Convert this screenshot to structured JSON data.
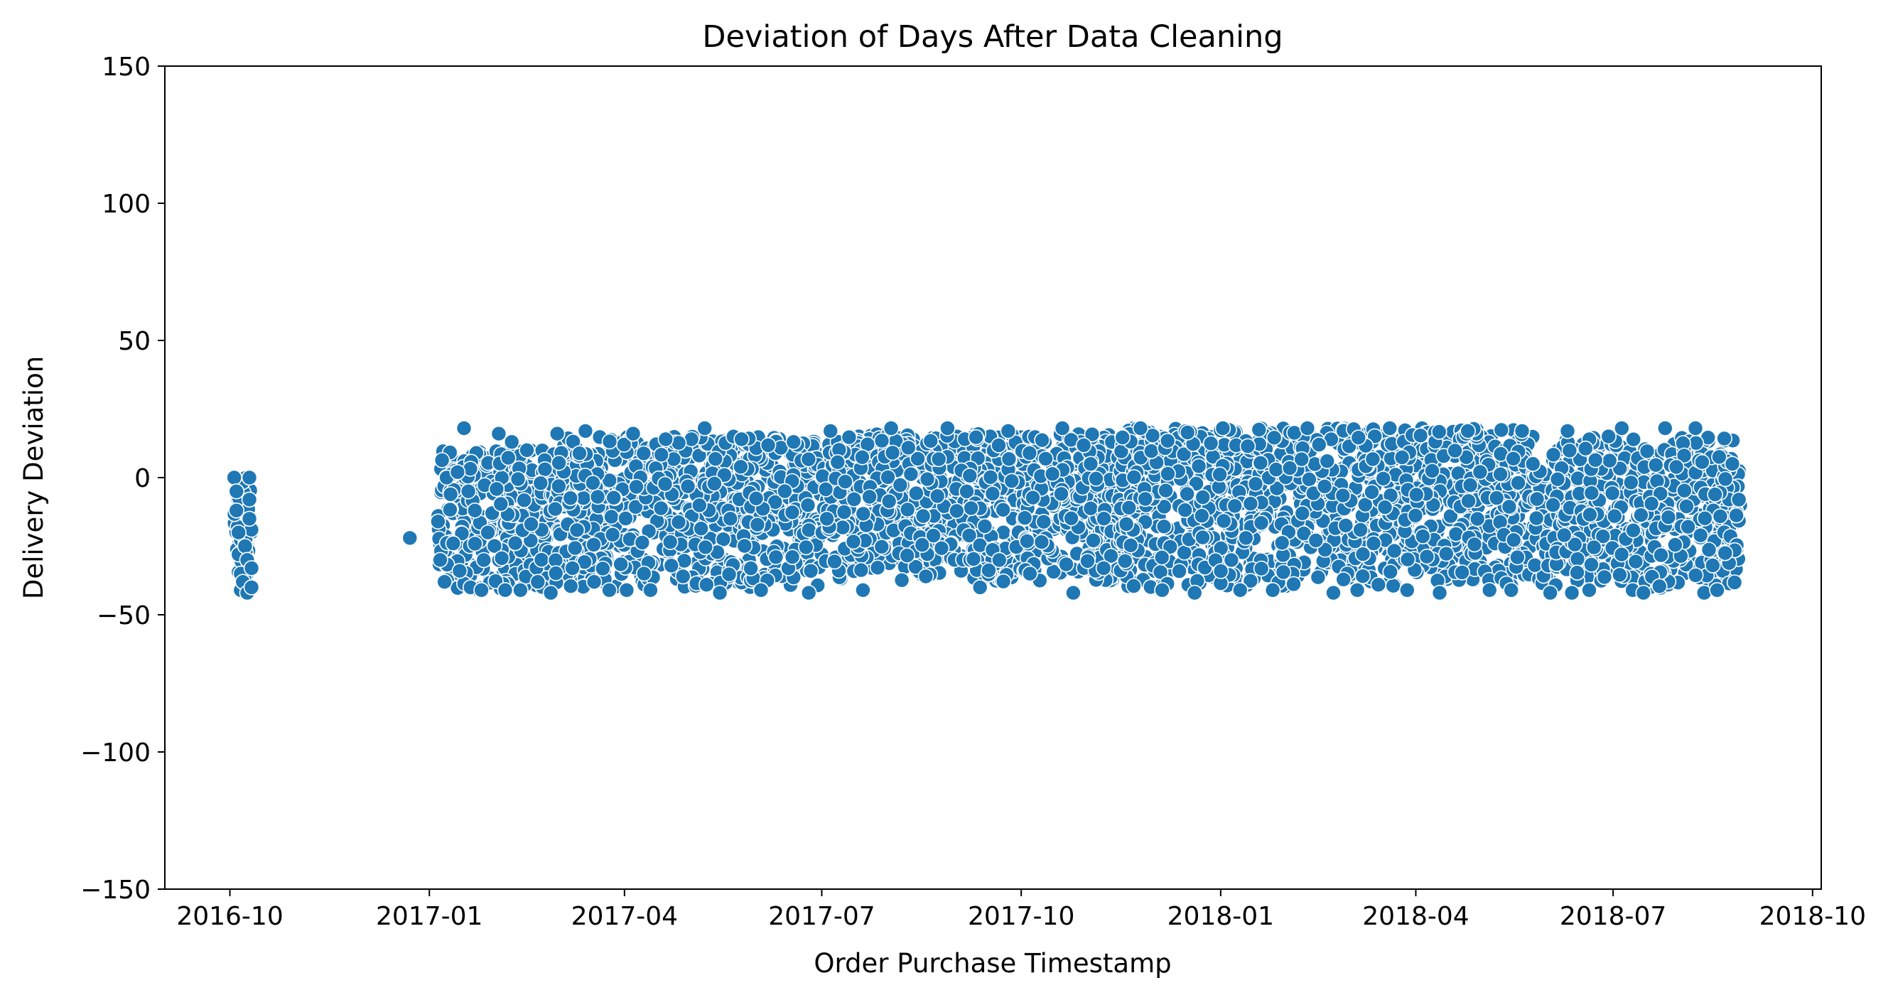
{
  "chart_data": {
    "type": "scatter",
    "title": "Deviation of Days After Data Cleaning",
    "xlabel": "Order Purchase Timestamp",
    "ylabel": "Delivery Deviation",
    "x_axis_type": "date",
    "xlim": [
      "2016-09-01",
      "2018-10-05"
    ],
    "ylim": [
      -150,
      150
    ],
    "x_ticks": [
      "2016-10",
      "2017-01",
      "2017-04",
      "2017-07",
      "2017-10",
      "2018-01",
      "2018-04",
      "2018-07",
      "2018-10"
    ],
    "y_ticks": [
      150,
      100,
      50,
      0,
      -50,
      -100,
      -150
    ],
    "y_tick_labels": [
      "150",
      "100",
      "50",
      "0",
      "−50",
      "−100",
      "−150"
    ],
    "grid": false,
    "legend": "none",
    "marker_color": "#1f77b4",
    "marker_edge_color": "#ffffff",
    "points": [
      {
        "x": "2016-10-03",
        "y": 0
      },
      {
        "x": "2016-10-04",
        "y": -5
      },
      {
        "x": "2016-10-04",
        "y": -12
      },
      {
        "x": "2016-10-05",
        "y": -20
      },
      {
        "x": "2016-10-05",
        "y": -28
      },
      {
        "x": "2016-10-06",
        "y": -35
      },
      {
        "x": "2016-10-06",
        "y": -41
      },
      {
        "x": "2016-10-07",
        "y": -38
      },
      {
        "x": "2016-10-08",
        "y": -25
      },
      {
        "x": "2016-10-09",
        "y": -42
      },
      {
        "x": "2016-10-09",
        "y": -30
      },
      {
        "x": "2016-10-10",
        "y": -15
      },
      {
        "x": "2016-10-10",
        "y": -8
      },
      {
        "x": "2016-10-10",
        "y": 0
      },
      {
        "x": "2016-10-11",
        "y": -33
      },
      {
        "x": "2016-10-11",
        "y": -40
      },
      {
        "x": "2016-12-23",
        "y": -22
      },
      {
        "x": "2017-01-05",
        "y": -16
      },
      {
        "x": "2017-01-06",
        "y": -30
      },
      {
        "x": "2017-01-08",
        "y": -38
      },
      {
        "x": "2017-01-09",
        "y": 0
      },
      {
        "x": "2017-01-12",
        "y": -24
      },
      {
        "x": "2017-01-14",
        "y": 2
      },
      {
        "x": "2017-01-15",
        "y": -34
      },
      {
        "x": "2017-01-17",
        "y": 18
      },
      {
        "x": "2017-01-19",
        "y": -5
      },
      {
        "x": "2017-01-20",
        "y": -40
      },
      {
        "x": "2017-01-22",
        "y": -12
      },
      {
        "x": "2017-01-25",
        "y": -41
      },
      {
        "x": "2017-01-28",
        "y": -20
      },
      {
        "x": "2017-02-02",
        "y": 16
      },
      {
        "x": "2017-02-05",
        "y": -41
      },
      {
        "x": "2017-02-08",
        "y": 13
      },
      {
        "x": "2017-02-12",
        "y": -41
      },
      {
        "x": "2017-02-15",
        "y": 10
      },
      {
        "x": "2017-02-20",
        "y": -38
      },
      {
        "x": "2017-02-26",
        "y": -42
      },
      {
        "x": "2017-03-01",
        "y": 16
      },
      {
        "x": "2017-03-08",
        "y": -33
      },
      {
        "x": "2017-03-14",
        "y": 17
      },
      {
        "x": "2017-03-18",
        "y": -38
      },
      {
        "x": "2017-03-25",
        "y": -41
      },
      {
        "x": "2017-04-02",
        "y": -41
      },
      {
        "x": "2017-04-05",
        "y": 16
      },
      {
        "x": "2017-04-10",
        "y": -35
      },
      {
        "x": "2017-04-13",
        "y": -41
      },
      {
        "x": "2017-04-20",
        "y": 14
      },
      {
        "x": "2017-04-28",
        "y": -36
      },
      {
        "x": "2017-05-08",
        "y": 18
      },
      {
        "x": "2017-05-15",
        "y": -42
      },
      {
        "x": "2017-05-25",
        "y": 14
      },
      {
        "x": "2017-06-03",
        "y": -41
      },
      {
        "x": "2017-06-18",
        "y": 13
      },
      {
        "x": "2017-06-25",
        "y": -42
      },
      {
        "x": "2017-07-05",
        "y": 17
      },
      {
        "x": "2017-07-20",
        "y": -41
      },
      {
        "x": "2017-08-02",
        "y": 18
      },
      {
        "x": "2017-08-18",
        "y": -36
      },
      {
        "x": "2017-08-28",
        "y": 18
      },
      {
        "x": "2017-09-12",
        "y": -40
      },
      {
        "x": "2017-09-25",
        "y": 17
      },
      {
        "x": "2017-10-05",
        "y": -35
      },
      {
        "x": "2017-10-20",
        "y": 18
      },
      {
        "x": "2017-10-25",
        "y": -42
      },
      {
        "x": "2017-11-08",
        "y": -33
      },
      {
        "x": "2017-11-25",
        "y": 18
      },
      {
        "x": "2017-12-05",
        "y": -41
      },
      {
        "x": "2017-12-20",
        "y": -42
      },
      {
        "x": "2018-01-02",
        "y": 18
      },
      {
        "x": "2018-01-10",
        "y": -41
      },
      {
        "x": "2018-01-25",
        "y": -41
      },
      {
        "x": "2018-02-10",
        "y": 18
      },
      {
        "x": "2018-02-22",
        "y": -42
      },
      {
        "x": "2018-03-05",
        "y": -41
      },
      {
        "x": "2018-03-20",
        "y": 18
      },
      {
        "x": "2018-03-28",
        "y": -41
      },
      {
        "x": "2018-04-12",
        "y": -42
      },
      {
        "x": "2018-04-25",
        "y": 17
      },
      {
        "x": "2018-05-05",
        "y": -41
      },
      {
        "x": "2018-05-15",
        "y": -41
      },
      {
        "x": "2018-05-20",
        "y": 17
      },
      {
        "x": "2018-05-25",
        "y": 5
      },
      {
        "x": "2018-06-02",
        "y": -42
      },
      {
        "x": "2018-06-10",
        "y": 17
      },
      {
        "x": "2018-06-12",
        "y": -42
      },
      {
        "x": "2018-06-20",
        "y": -41
      },
      {
        "x": "2018-07-05",
        "y": 18
      },
      {
        "x": "2018-07-10",
        "y": -41
      },
      {
        "x": "2018-07-15",
        "y": -42
      },
      {
        "x": "2018-07-25",
        "y": 18
      },
      {
        "x": "2018-08-08",
        "y": 18
      },
      {
        "x": "2018-08-12",
        "y": -42
      },
      {
        "x": "2018-08-18",
        "y": -41
      },
      {
        "x": "2018-08-25",
        "y": 5
      },
      {
        "x": "2018-08-28",
        "y": -8
      }
    ],
    "dense_bands": [
      {
        "x_start": "2016-10-03",
        "x_end": "2016-10-11",
        "y_low": -42,
        "y_high": 0
      },
      {
        "x_start": "2017-01-05",
        "x_end": "2017-02-28",
        "y_low": -41,
        "y_high": 10
      },
      {
        "x_start": "2017-02-28",
        "x_end": "2017-07-01",
        "y_low": -40,
        "y_high": 15
      },
      {
        "x_start": "2017-07-01",
        "x_end": "2017-11-15",
        "y_low": -38,
        "y_high": 16
      },
      {
        "x_start": "2017-11-15",
        "x_end": "2018-05-25",
        "y_low": -40,
        "y_high": 18
      },
      {
        "x_start": "2018-05-25",
        "x_end": "2018-06-03",
        "y_low": -40,
        "y_high": 3
      },
      {
        "x_start": "2018-06-03",
        "x_end": "2018-08-29",
        "y_low": -41,
        "y_high": 15
      }
    ]
  }
}
